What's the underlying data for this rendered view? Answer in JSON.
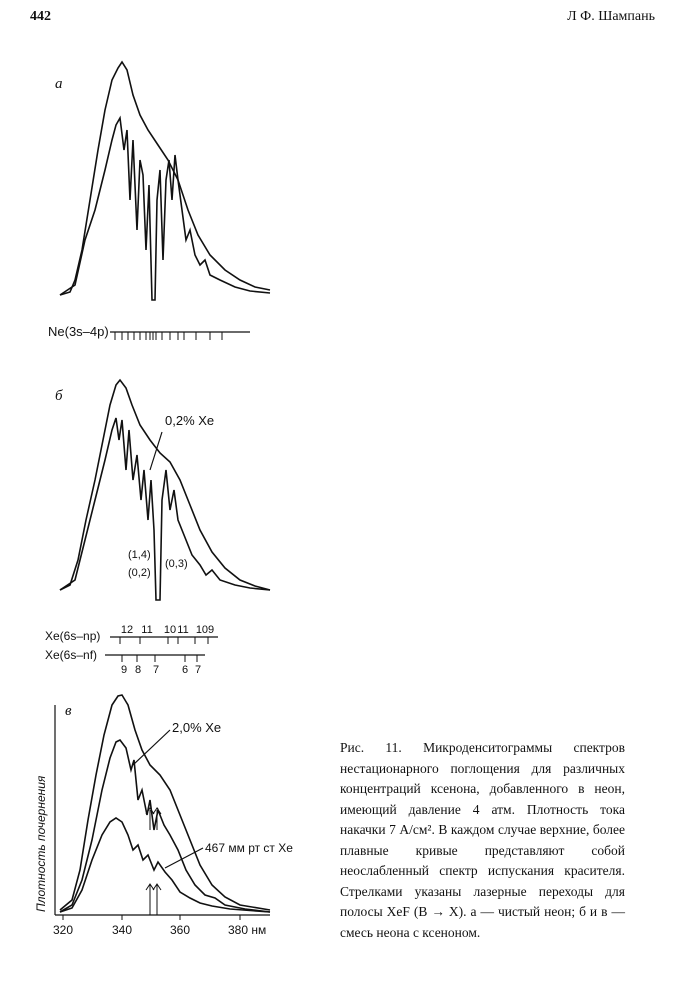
{
  "header": {
    "page_number": "442",
    "running_head": "Л Ф. Шампань"
  },
  "figure": {
    "panel_a": {
      "label": "а",
      "transitions": "Ne(3s–4p)"
    },
    "panel_b": {
      "label": "б",
      "concentration": "0,2% Xe",
      "band_labels": [
        "(1,4)",
        "(0,2)",
        "(0,3)"
      ],
      "np_series": "Xe(6s–np)",
      "np_numbers": [
        "12",
        "11",
        "10",
        "11",
        "109"
      ],
      "nf_series": "Xe(6s–nf)",
      "nf_numbers": [
        "9",
        "8",
        "7",
        "6",
        "7"
      ]
    },
    "panel_c": {
      "label": "в",
      "concentration": "2,0% Xe",
      "pressure": "467 мм рт ст Xe",
      "y_label": "Плотность почернения",
      "x_ticks": [
        "320",
        "340",
        "360",
        "380 нм"
      ]
    }
  },
  "caption": "Рис. 11. Микроденситограммы спектров нестационарного поглощения для различных концентраций ксенона, добавленного в неон, имеющий давление 4 атм. Плотность тока накачки 7 А/см². В каждом случае верхние, более плавные кривые представляют собой неослабленный спектр испускания красителя. Стрелками указаны лазерные переходы для полосы XeF (B → X). а — чистый неон; б и в — смесь неона с ксеноном."
}
